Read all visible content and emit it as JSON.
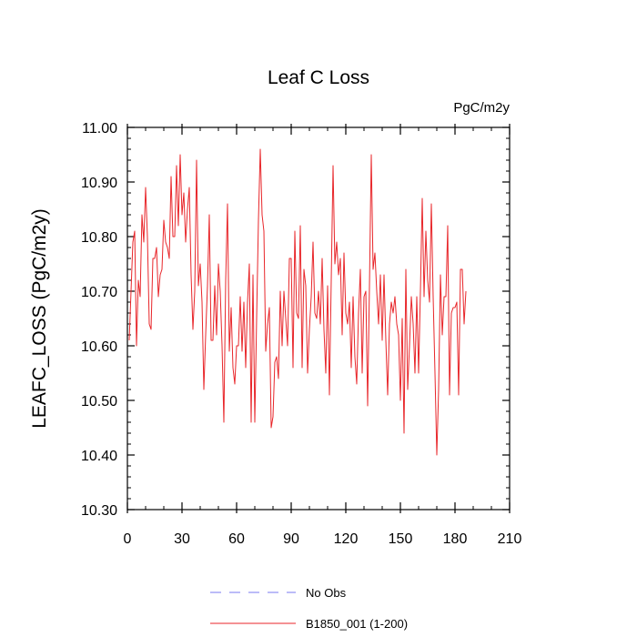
{
  "chart_data": {
    "type": "line",
    "title": "Leaf C Loss",
    "units": "PgC/m2y",
    "xlabel": "",
    "ylabel": "LEAFC_LOSS  (PgC/m2y)",
    "xlim": [
      0,
      210
    ],
    "ylim": [
      10.3,
      11.0
    ],
    "xticks": [
      0,
      30,
      60,
      90,
      120,
      150,
      180,
      210
    ],
    "yticks": [
      10.3,
      10.4,
      10.5,
      10.6,
      10.7,
      10.8,
      10.9,
      11.0
    ],
    "xtick_labels": [
      "0",
      "30",
      "60",
      "90",
      "120",
      "150",
      "180",
      "210"
    ],
    "ytick_labels": [
      "10.30",
      "10.40",
      "10.50",
      "10.60",
      "10.70",
      "10.80",
      "10.90",
      "11.00"
    ],
    "legend": [
      {
        "label": "No Obs",
        "style": "dashed",
        "color": "#7a7af0"
      },
      {
        "label": "B1850_001 (1-200)",
        "style": "solid",
        "color": "#e8262a"
      }
    ],
    "series": [
      {
        "name": "B1850_001 (1-200)",
        "color": "#e8262a",
        "x_start": 1,
        "values": [
          10.61,
          10.7,
          10.79,
          10.81,
          10.6,
          10.72,
          10.69,
          10.84,
          10.79,
          10.89,
          10.8,
          10.64,
          10.63,
          10.76,
          10.76,
          10.78,
          10.69,
          10.73,
          10.74,
          10.83,
          10.79,
          10.78,
          10.76,
          10.91,
          10.8,
          10.8,
          10.93,
          10.82,
          10.95,
          10.84,
          10.88,
          10.79,
          10.85,
          10.89,
          10.73,
          10.63,
          10.7,
          10.94,
          10.71,
          10.75,
          10.68,
          10.52,
          10.62,
          10.71,
          10.84,
          10.61,
          10.61,
          10.71,
          10.62,
          10.75,
          10.7,
          10.6,
          10.46,
          10.72,
          10.86,
          10.59,
          10.67,
          10.56,
          10.53,
          10.6,
          10.6,
          10.69,
          10.59,
          10.68,
          10.56,
          10.68,
          10.75,
          10.46,
          10.73,
          10.46,
          10.65,
          10.83,
          10.96,
          10.84,
          10.81,
          10.59,
          10.64,
          10.67,
          10.45,
          10.47,
          10.57,
          10.58,
          10.54,
          10.7,
          10.6,
          10.7,
          10.65,
          10.6,
          10.76,
          10.76,
          10.56,
          10.81,
          10.66,
          10.65,
          10.82,
          10.56,
          10.74,
          10.71,
          10.55,
          10.63,
          10.69,
          10.79,
          10.66,
          10.65,
          10.7,
          10.64,
          10.76,
          10.63,
          10.55,
          10.71,
          10.51,
          10.72,
          10.93,
          10.75,
          10.79,
          10.73,
          10.76,
          10.62,
          10.77,
          10.66,
          10.64,
          10.68,
          10.56,
          10.69,
          10.58,
          10.53,
          10.66,
          10.74,
          10.55,
          10.69,
          10.7,
          10.49,
          10.71,
          10.95,
          10.74,
          10.77,
          10.7,
          10.64,
          10.73,
          10.61,
          10.73,
          10.61,
          10.51,
          10.64,
          10.68,
          10.66,
          10.69,
          10.64,
          10.62,
          10.5,
          10.65,
          10.44,
          10.74,
          10.52,
          10.6,
          10.69,
          10.64,
          10.55,
          10.69,
          10.55,
          10.7,
          10.87,
          10.69,
          10.81,
          10.72,
          10.68,
          10.86,
          10.69,
          10.55,
          10.4,
          10.52,
          10.73,
          10.62,
          10.69,
          10.69,
          10.82,
          10.51,
          10.66,
          10.67,
          10.67,
          10.68,
          10.51,
          10.74,
          10.74,
          10.64,
          10.7
        ]
      }
    ]
  }
}
